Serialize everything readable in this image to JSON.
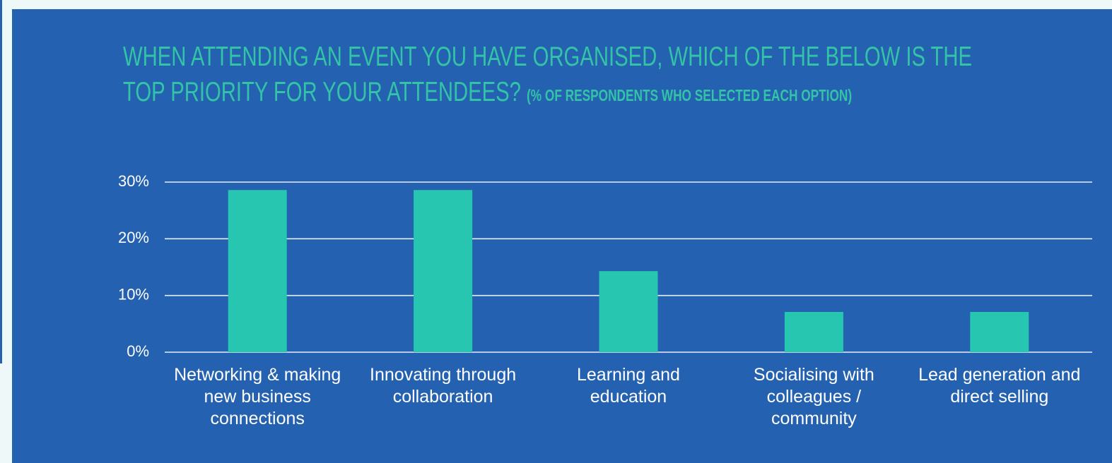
{
  "chart_data": {
    "type": "bar",
    "title": "WHEN ATTENDING AN EVENT YOU HAVE ORGANISED, WHICH OF THE BELOW IS THE TOP PRIORITY FOR YOUR ATTENDEES?",
    "subtitle": "(% OF RESPONDENTS WHO SELECTED EACH OPTION)",
    "categories": [
      "Networking & making new business connections",
      "Innovating through collaboration",
      "Learning and education",
      "Socialising with colleagues / community",
      "Lead generation and direct selling"
    ],
    "values": [
      28.6,
      28.6,
      14.3,
      7.1,
      7.1
    ],
    "color": "#26c6b0",
    "ylim": [
      0,
      30
    ],
    "yticks": [
      {
        "value": 0,
        "label": "0%"
      },
      {
        "value": 10,
        "label": "10%"
      },
      {
        "value": 20,
        "label": "20%"
      },
      {
        "value": 30,
        "label": "30%"
      }
    ],
    "grid": true
  }
}
